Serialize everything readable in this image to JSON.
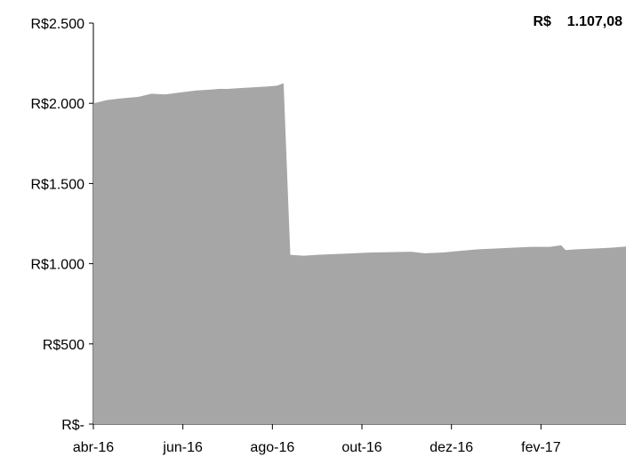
{
  "chart_data": {
    "type": "area",
    "annotation": {
      "currency": "R$",
      "value": "1.107,08"
    },
    "y_ticks": [
      {
        "value": 0,
        "label": "R$-"
      },
      {
        "value": 500,
        "label": "R$500"
      },
      {
        "value": 1000,
        "label": "R$1.000"
      },
      {
        "value": 1500,
        "label": "R$1.500"
      },
      {
        "value": 2000,
        "label": "R$2.000"
      },
      {
        "value": 2500,
        "label": "R$2.500"
      }
    ],
    "x_ticks": [
      {
        "value": 0,
        "label": "abr-16"
      },
      {
        "value": 2,
        "label": "jun-16"
      },
      {
        "value": 4,
        "label": "ago-16"
      },
      {
        "value": 6,
        "label": "out-16"
      },
      {
        "value": 8,
        "label": "dez-16"
      },
      {
        "value": 10,
        "label": "fev-17"
      }
    ],
    "xlim": [
      0,
      11.9
    ],
    "ylim": [
      0,
      2500
    ],
    "color": "#a6a6a6",
    "series": [
      {
        "x": [
          0,
          0.3,
          0.6,
          1.0,
          1.3,
          1.6,
          2.0,
          2.3,
          2.6,
          2.8,
          3.0,
          3.3,
          3.6,
          3.9,
          4.1,
          4.25,
          4.4,
          4.7,
          5.0,
          5.4,
          5.8,
          6.2,
          6.6,
          7.1,
          7.4,
          7.8,
          8.2,
          8.6,
          9.0,
          9.4,
          9.8,
          10.2,
          10.45,
          10.55,
          10.8,
          11.2,
          11.6,
          11.9
        ],
        "y": [
          2000,
          2020,
          2030,
          2040,
          2060,
          2055,
          2070,
          2080,
          2085,
          2090,
          2090,
          2095,
          2100,
          2105,
          2110,
          2125,
          1055,
          1050,
          1055,
          1060,
          1065,
          1070,
          1072,
          1075,
          1065,
          1070,
          1080,
          1090,
          1095,
          1100,
          1105,
          1105,
          1115,
          1085,
          1090,
          1095,
          1100,
          1107
        ]
      }
    ]
  }
}
